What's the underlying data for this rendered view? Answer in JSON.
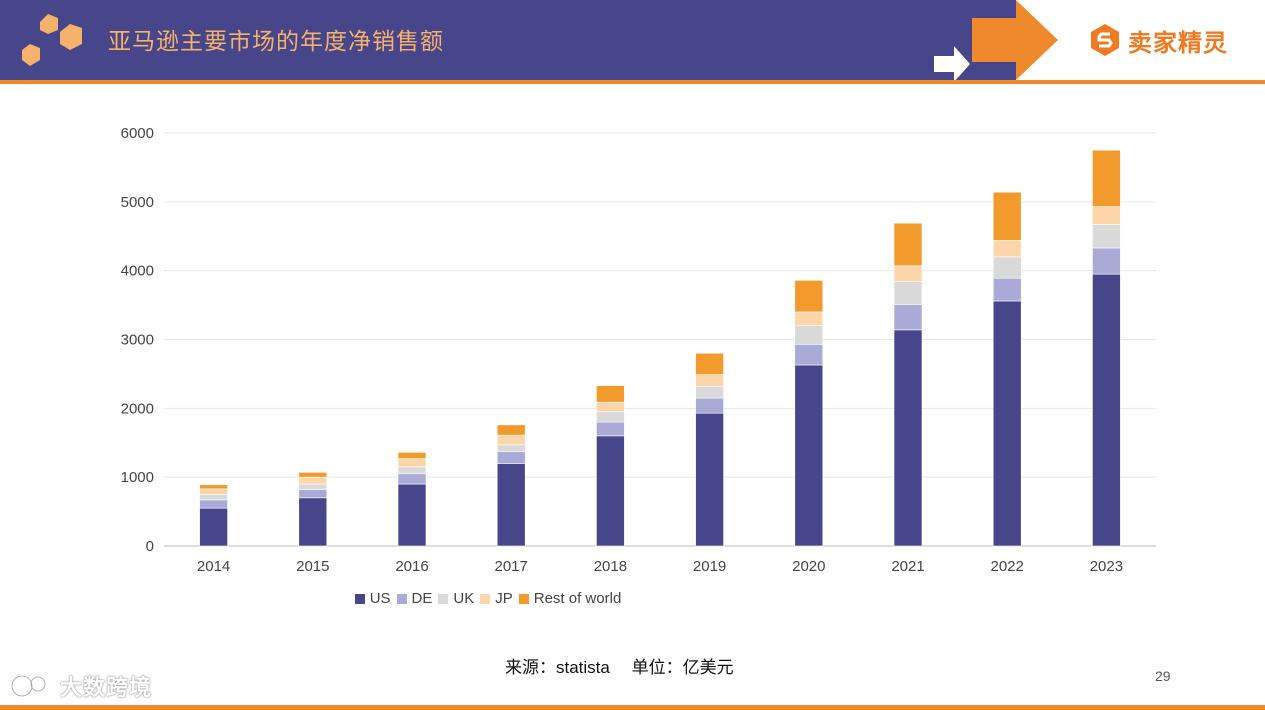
{
  "header": {
    "title": "亚马逊主要市场的年度净销售额",
    "brand_name": "卖家精灵"
  },
  "colors": {
    "header_bg": "#47468a",
    "accent_orange": "#ee8a2b",
    "US": "#47468a",
    "DE": "#aaaad6",
    "UK": "#d9d9d9",
    "JP": "#fcd6a8",
    "Rest of world": "#f39a2c"
  },
  "chart_data": {
    "type": "bar",
    "stacked": true,
    "title": "",
    "xlabel": "",
    "ylabel": "",
    "categories": [
      "2014",
      "2015",
      "2016",
      "2017",
      "2018",
      "2019",
      "2020",
      "2021",
      "2022",
      "2023"
    ],
    "series": [
      {
        "name": "US",
        "values": [
          550,
          700,
          900,
          1200,
          1600,
          1930,
          2630,
          3140,
          3560,
          3950
        ]
      },
      {
        "name": "DE",
        "values": [
          120,
          120,
          150,
          170,
          200,
          220,
          300,
          370,
          330,
          380
        ]
      },
      {
        "name": "UK",
        "values": [
          80,
          80,
          100,
          100,
          150,
          170,
          270,
          330,
          310,
          340
        ]
      },
      {
        "name": "JP",
        "values": [
          80,
          100,
          120,
          140,
          140,
          170,
          200,
          230,
          240,
          260
        ]
      },
      {
        "name": "Rest of world",
        "values": [
          60,
          70,
          90,
          150,
          240,
          310,
          460,
          620,
          700,
          820
        ]
      }
    ],
    "yticks": [
      "0",
      "1000",
      "2000",
      "3000",
      "4000",
      "5000",
      "6000"
    ],
    "ylim": [
      0,
      6000
    ],
    "grid": true,
    "legend_position": "bottom"
  },
  "footer": {
    "source": "来源：statista　 单位：亿美元",
    "page_number": "29",
    "watermark": "大数跨境"
  }
}
